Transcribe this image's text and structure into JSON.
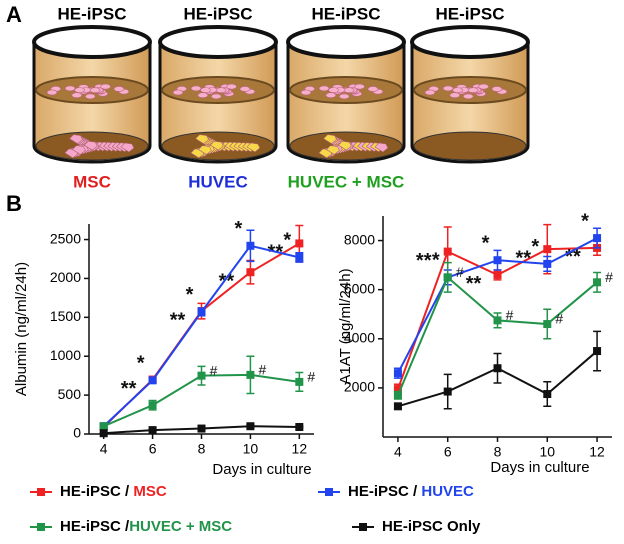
{
  "panel_a": {
    "label": "A",
    "wells": [
      {
        "label": "HE-iPSC",
        "culture": "MSC",
        "culture_color": "#e02020"
      },
      {
        "label": "HE-iPSC",
        "culture": "HUVEC",
        "culture_color": "#1f2fd8"
      },
      {
        "label": "HE-iPSC",
        "culture": "HUVEC + MSC",
        "culture_color": "#20a020"
      },
      {
        "label": "HE-iPSC",
        "culture": null,
        "culture_color": null
      }
    ]
  },
  "panel_b_label": "B",
  "chart_data": [
    {
      "type": "line",
      "y_label": "Albumin (ng/ml/24h)",
      "x_label": "Days in culture",
      "x": [
        4,
        6,
        8,
        10,
        12
      ],
      "xlim": [
        3.4,
        12.6
      ],
      "xticks": [
        4,
        6,
        8,
        10,
        12
      ],
      "ylim": [
        0,
        2700
      ],
      "yticks": [
        0,
        500,
        1000,
        1500,
        2000,
        2500
      ],
      "series": [
        {
          "name": "HE-iPSC / MSC",
          "color": "#ee2222",
          "values": [
            90,
            700,
            1580,
            2080,
            2450
          ],
          "errors": [
            20,
            30,
            100,
            150,
            230
          ],
          "annotations": [
            null,
            "**",
            "**",
            "**",
            "**"
          ]
        },
        {
          "name": "HE-iPSC / HUVEC",
          "color": "#2244ee",
          "values": [
            100,
            690,
            1570,
            2420,
            2270
          ],
          "errors": [
            20,
            30,
            50,
            200,
            60
          ],
          "annotations": [
            null,
            "*",
            "*",
            "*",
            "*"
          ]
        },
        {
          "name": "HE-iPSC /HUVEC + MSC",
          "color": "#22944a",
          "values": [
            100,
            370,
            750,
            760,
            670
          ],
          "errors": [
            20,
            60,
            120,
            240,
            120
          ],
          "annotations": [
            null,
            null,
            "#",
            "#",
            "#"
          ]
        },
        {
          "name": "HE-iPSC Only",
          "color": "#111111",
          "values": [
            10,
            50,
            70,
            100,
            90
          ],
          "errors": [
            5,
            10,
            10,
            20,
            10
          ],
          "annotations": [
            null,
            null,
            null,
            null,
            null
          ]
        }
      ]
    },
    {
      "type": "line",
      "y_label": "A1AT (ng/ml/24h)",
      "x_label": "Days in culture",
      "x": [
        4,
        6,
        8,
        10,
        12
      ],
      "xlim": [
        3.4,
        12.6
      ],
      "xticks": [
        4,
        6,
        8,
        10,
        12
      ],
      "ylim": [
        0,
        9000
      ],
      "yticks": [
        2000,
        4000,
        6000,
        8000
      ],
      "series": [
        {
          "name": "HE-iPSC / MSC",
          "color": "#ee2222",
          "values": [
            1950,
            7550,
            6600,
            7650,
            7700
          ],
          "errors": [
            200,
            1000,
            200,
            1000,
            300
          ],
          "annotations": [
            null,
            "**",
            "**",
            "**",
            "**"
          ]
        },
        {
          "name": "HE-iPSC / HUVEC",
          "color": "#2244ee",
          "values": [
            2600,
            6500,
            7200,
            7050,
            8100
          ],
          "errors": [
            200,
            300,
            400,
            300,
            400
          ],
          "annotations": [
            null,
            "*",
            "*",
            "*",
            "*"
          ]
        },
        {
          "name": "HE-iPSC /HUVEC + MSC",
          "color": "#22944a",
          "values": [
            1700,
            6500,
            4750,
            4600,
            6300
          ],
          "errors": [
            150,
            600,
            300,
            600,
            400
          ],
          "annotations": [
            null,
            "#",
            "#",
            "#",
            "#"
          ]
        },
        {
          "name": "HE-iPSC Only",
          "color": "#111111",
          "values": [
            1250,
            1850,
            2800,
            1750,
            3500
          ],
          "errors": [
            100,
            700,
            600,
            500,
            800
          ],
          "annotations": [
            null,
            null,
            null,
            null,
            null
          ]
        }
      ]
    }
  ]
}
